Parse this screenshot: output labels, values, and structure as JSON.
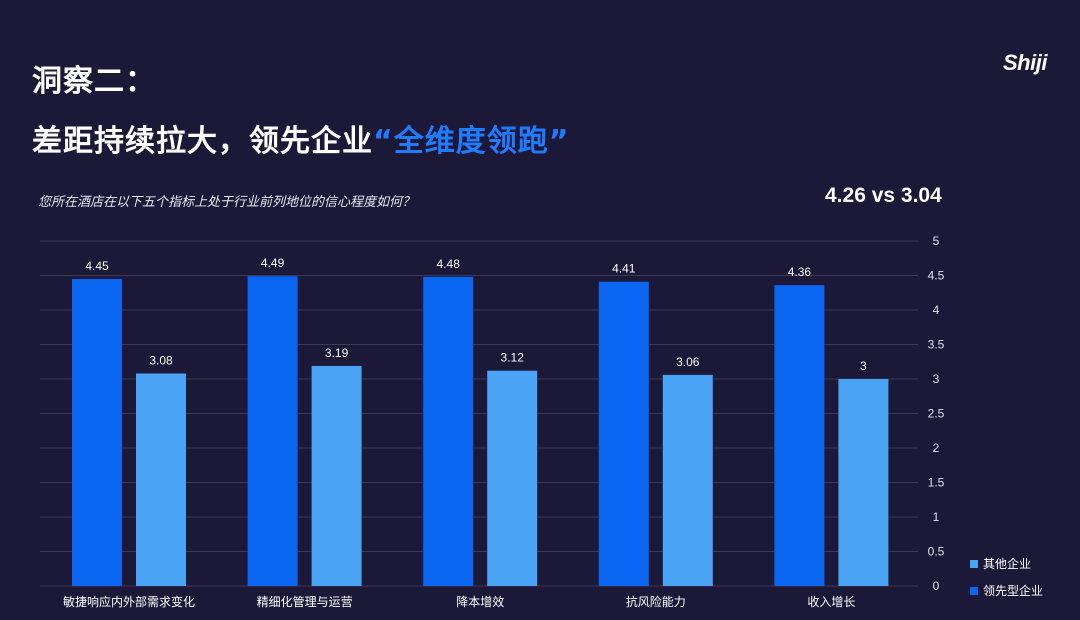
{
  "slide": {
    "title_line1": "洞察二：",
    "title_line2_prefix": "差距持续拉大，领先企业",
    "title_line2_highlight": "“全维度领跑”",
    "logo_text": "Shiji",
    "question": "您所在酒店在以下五个指标上处于行业前列地位的信心程度如何？",
    "comparison": "4.26 vs 3.04"
  },
  "colors": {
    "background": "#1b1838",
    "highlight": "#1f7bff",
    "leading_series": "#0a66f0",
    "other_series": "#4aa3f5"
  },
  "chart_data": {
    "type": "bar",
    "categories": [
      "敏捷响应内外部需求变化",
      "精细化管理与运营",
      "降本增效",
      "抗风险能力",
      "收入增长"
    ],
    "series": [
      {
        "name": "领先型企业",
        "values": [
          4.45,
          4.49,
          4.48,
          4.41,
          4.36
        ],
        "labels": [
          "4.45",
          "4.49",
          "4.48",
          "4.41",
          "4.36"
        ],
        "color": "#0a66f0"
      },
      {
        "name": "其他企业",
        "values": [
          3.08,
          3.19,
          3.12,
          3.06,
          3.0
        ],
        "labels": [
          "3.08",
          "3.19",
          "3.12",
          "3.06",
          "3"
        ],
        "color": "#4aa3f5"
      }
    ],
    "yticks": [
      "0",
      "0.5",
      "1",
      "1.5",
      "2",
      "2.5",
      "3",
      "3.5",
      "4",
      "4.5",
      "5"
    ],
    "ylim": [
      0,
      5
    ],
    "grid": true,
    "y_axis_side": "right",
    "legend": {
      "position": "bottom-right",
      "entries": [
        "其他企业",
        "领先型企业"
      ]
    }
  }
}
